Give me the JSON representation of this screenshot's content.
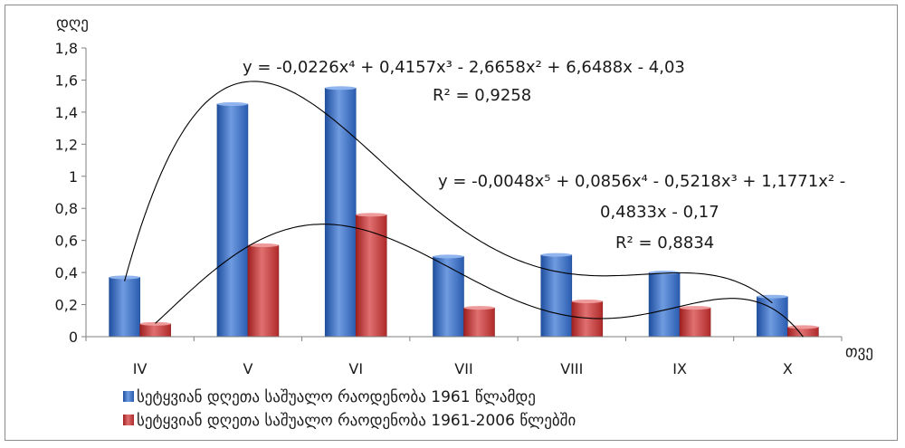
{
  "chart_data": {
    "type": "bar",
    "ylabel": "დღე",
    "xlabel": "თვე",
    "categories": [
      "IV",
      "V",
      "VI",
      "VII",
      "VIII",
      "IX",
      "X"
    ],
    "ylim": [
      0,
      1.8
    ],
    "yticks": [
      "0",
      "0,2",
      "0,4",
      "0,6",
      "0,8",
      "1",
      "1,2",
      "1,4",
      "1,6",
      "1,8"
    ],
    "grid": false,
    "legend_position": "bottom",
    "series": [
      {
        "name": "სეტყვიან დღეთა საშუალო რაოდენობა 1961 წლამდე",
        "color": "#3b6fc4",
        "values": [
          0.37,
          1.45,
          1.55,
          0.5,
          0.51,
          0.4,
          0.25
        ]
      },
      {
        "name": "სეტყვიან დღეთა საშუალო რაოდენობა 1961-2006 წლებში",
        "color": "#c43b3b",
        "values": [
          0.08,
          0.57,
          0.76,
          0.18,
          0.22,
          0.18,
          0.06
        ]
      }
    ],
    "trendlines": [
      {
        "series": 0,
        "type": "polynomial",
        "coefficients": [
          -0.0226,
          0.4157,
          -2.6658,
          6.6488,
          -4.03
        ],
        "equation_line1": "y = -0,0226x⁴ + 0,4157x³ - 2,6658x² + 6,6488x - 4,03",
        "r2_label": "R² = 0,9258"
      },
      {
        "series": 1,
        "type": "polynomial",
        "coefficients": [
          -0.0048,
          0.0856,
          -0.5218,
          1.1771,
          -0.4833,
          -0.17
        ],
        "equation_line1": "y = -0,0048x⁵ + 0,0856x⁴ - 0,5218x³ + 1,1771x² -",
        "equation_line2": "0,4833x - 0,17",
        "r2_label": "R² = 0,8834"
      }
    ]
  }
}
